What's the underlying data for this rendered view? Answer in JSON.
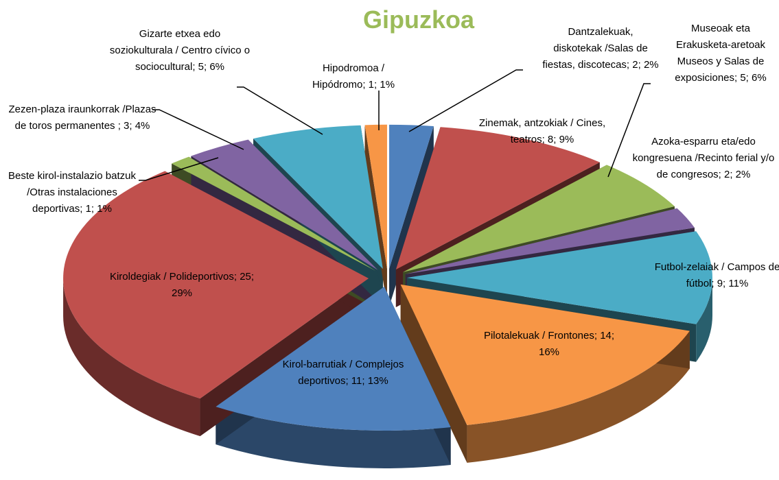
{
  "chart_data": {
    "type": "pie3d",
    "title": "Gipuzkoa",
    "labels": [
      "Dantzalekuak, diskotekak /Salas de fiestas, discotecas; 2; 2%",
      "Zinemak, antzokiak / Cines, teatros; 8; 9%",
      "Museoak eta Erakusketa-aretoak Museos y Salas de exposiciones; 5; 6%",
      "Azoka-esparru eta/edo kongresuena /Recinto ferial y/o de congresos; 2; 2%",
      "Futbol-zelaiak / Campos de fútbol; 9; 11%",
      "Pilotalekuak / Frontones; 14; 16%",
      "Kirol-barrutiak / Complejos deportivos; 11; 13%",
      "Kiroldegiak / Polideportivos; 25; 29%",
      "Beste kirol-instalazio batzuk /Otras instalaciones deportivas; 1; 1%",
      "Zezen-plaza iraunkorrak /Plazas de toros permanentes ; 3; 4%",
      "Gizarte etxea edo soziokulturala / Centro cívico o sociocultural; 5; 6%",
      "Hipodromoa / Hipódromo; 1; 1%"
    ],
    "values": [
      2,
      8,
      5,
      2,
      9,
      14,
      11,
      25,
      1,
      3,
      5,
      1
    ],
    "colors": [
      "#4f81bd",
      "#c0504d",
      "#9bbb59",
      "#8064a2",
      "#4bacc6",
      "#f79646",
      "#4f81bd",
      "#c0504d",
      "#9bbb59",
      "#8064a2",
      "#4bacc6",
      "#f79646"
    ],
    "title_color": "#9bbb59"
  }
}
